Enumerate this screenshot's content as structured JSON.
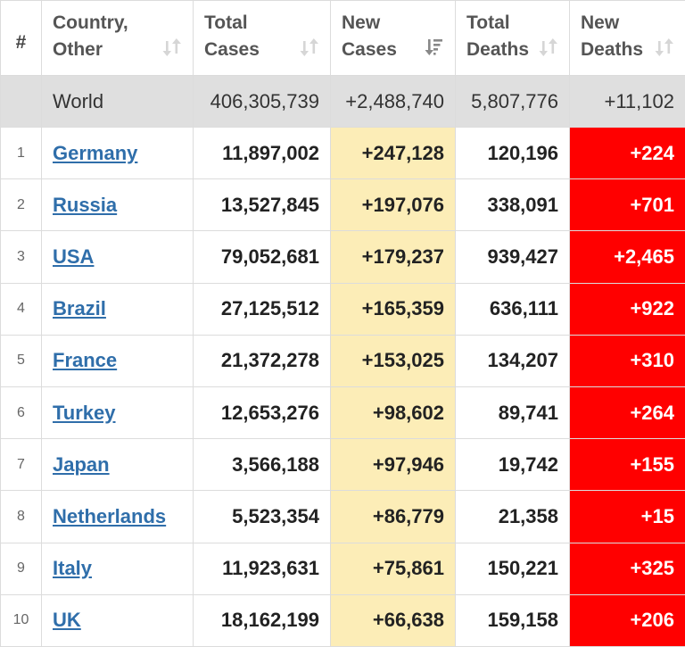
{
  "header": {
    "rank": "#",
    "country_l1": "Country,",
    "country_l2": "Other",
    "total_cases_l1": "Total",
    "total_cases_l2": "Cases",
    "new_cases_l1": "New",
    "new_cases_l2": "Cases",
    "total_deaths_l1": "Total",
    "total_deaths_l2": "Deaths",
    "new_deaths_l1": "New",
    "new_deaths_l2": "Deaths"
  },
  "world": {
    "country": "World",
    "total_cases": "406,305,739",
    "new_cases": "+2,488,740",
    "total_deaths": "5,807,776",
    "new_deaths": "+11,102"
  },
  "rows": [
    {
      "rank": "1",
      "country": "Germany",
      "total_cases": "11,897,002",
      "new_cases": "+247,128",
      "total_deaths": "120,196",
      "new_deaths": "+224"
    },
    {
      "rank": "2",
      "country": "Russia",
      "total_cases": "13,527,845",
      "new_cases": "+197,076",
      "total_deaths": "338,091",
      "new_deaths": "+701"
    },
    {
      "rank": "3",
      "country": "USA",
      "total_cases": "79,052,681",
      "new_cases": "+179,237",
      "total_deaths": "939,427",
      "new_deaths": "+2,465"
    },
    {
      "rank": "4",
      "country": "Brazil",
      "total_cases": "27,125,512",
      "new_cases": "+165,359",
      "total_deaths": "636,111",
      "new_deaths": "+922"
    },
    {
      "rank": "5",
      "country": "France",
      "total_cases": "21,372,278",
      "new_cases": "+153,025",
      "total_deaths": "134,207",
      "new_deaths": "+310"
    },
    {
      "rank": "6",
      "country": "Turkey",
      "total_cases": "12,653,276",
      "new_cases": "+98,602",
      "total_deaths": "89,741",
      "new_deaths": "+264"
    },
    {
      "rank": "7",
      "country": "Japan",
      "total_cases": "3,566,188",
      "new_cases": "+97,946",
      "total_deaths": "19,742",
      "new_deaths": "+155"
    },
    {
      "rank": "8",
      "country": "Netherlands",
      "total_cases": "5,523,354",
      "new_cases": "+86,779",
      "total_deaths": "21,358",
      "new_deaths": "+15"
    },
    {
      "rank": "9",
      "country": "Italy",
      "total_cases": "11,923,631",
      "new_cases": "+75,861",
      "total_deaths": "150,221",
      "new_deaths": "+325"
    },
    {
      "rank": "10",
      "country": "UK",
      "total_cases": "18,162,199",
      "new_cases": "+66,638",
      "total_deaths": "159,158",
      "new_deaths": "+206"
    }
  ],
  "colors": {
    "link": "#2f6eaa",
    "new_cases_bg": "#fcedb7",
    "new_deaths_bg": "#ff0000",
    "world_bg": "#dfdfdf"
  },
  "icons": {
    "sort_default": "sort-arrows-icon",
    "sort_active_desc": "sort-descending-icon"
  }
}
